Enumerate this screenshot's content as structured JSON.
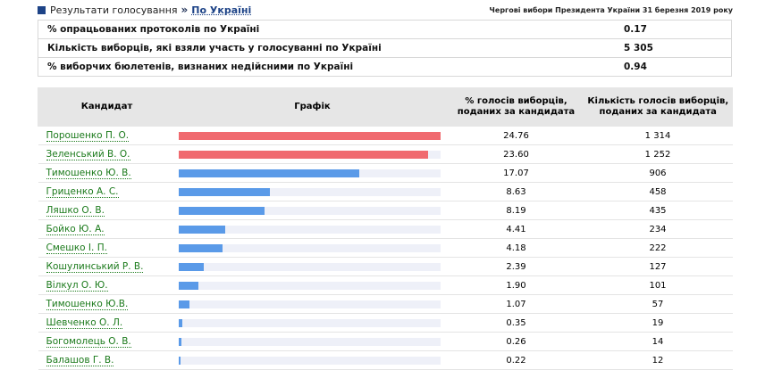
{
  "header": {
    "breadcrumb_root": "Результати голосування",
    "breadcrumb_sep": "»",
    "breadcrumb_current": "По Україні",
    "election_title": "Чергові вибори Президента України 31 березня 2019 року"
  },
  "summary": [
    {
      "label": "% опрацьованих протоколів по Україні",
      "value": "0.17"
    },
    {
      "label": "Кількість виборців, які взяли участь у голосуванні по Україні",
      "value": "5 305"
    },
    {
      "label": "% виборчих бюлетенів, визнаних недійсними по Україні",
      "value": "0.94"
    }
  ],
  "table": {
    "columns": [
      "Кандидат",
      "Графік",
      "% голосів виборців, поданих за кандидата",
      "Кількість голосів виборців, поданих за кандидата"
    ],
    "rows": [
      {
        "name": "Порошенко П. О.",
        "percent": "24.76",
        "votes": "1 314",
        "pct": 24.76,
        "color": "#f06a6f"
      },
      {
        "name": "Зеленський В. О.",
        "percent": "23.60",
        "votes": "1 252",
        "pct": 23.6,
        "color": "#f06a6f"
      },
      {
        "name": "Тимошенко Ю. В.",
        "percent": "17.07",
        "votes": "906",
        "pct": 17.07,
        "color": "#5a9ae8"
      },
      {
        "name": "Гриценко А. С.",
        "percent": "8.63",
        "votes": "458",
        "pct": 8.63,
        "color": "#5a9ae8"
      },
      {
        "name": "Ляшко О. В.",
        "percent": "8.19",
        "votes": "435",
        "pct": 8.19,
        "color": "#5a9ae8"
      },
      {
        "name": "Бойко Ю. А.",
        "percent": "4.41",
        "votes": "234",
        "pct": 4.41,
        "color": "#5a9ae8"
      },
      {
        "name": "Смешко І. П.",
        "percent": "4.18",
        "votes": "222",
        "pct": 4.18,
        "color": "#5a9ae8"
      },
      {
        "name": "Кошулинський Р. В.",
        "percent": "2.39",
        "votes": "127",
        "pct": 2.39,
        "color": "#5a9ae8"
      },
      {
        "name": "Вілкул О. Ю.",
        "percent": "1.90",
        "votes": "101",
        "pct": 1.9,
        "color": "#5a9ae8"
      },
      {
        "name": "Тимошенко Ю.В.",
        "percent": "1.07",
        "votes": "57",
        "pct": 1.07,
        "color": "#5a9ae8"
      },
      {
        "name": "Шевченко О. Л.",
        "percent": "0.35",
        "votes": "19",
        "pct": 0.35,
        "color": "#5a9ae8"
      },
      {
        "name": "Богомолець О. В.",
        "percent": "0.26",
        "votes": "14",
        "pct": 0.26,
        "color": "#5a9ae8"
      },
      {
        "name": "Балашов Г. В.",
        "percent": "0.22",
        "votes": "12",
        "pct": 0.22,
        "color": "#5a9ae8"
      }
    ]
  },
  "icons": {
    "breadcrumb_marker": "square-icon"
  },
  "colors": {
    "leader_bar": "#f06a6f",
    "other_bar": "#5a9ae8",
    "link": "#1b7a1b",
    "header_bg": "#e6e6e6"
  }
}
